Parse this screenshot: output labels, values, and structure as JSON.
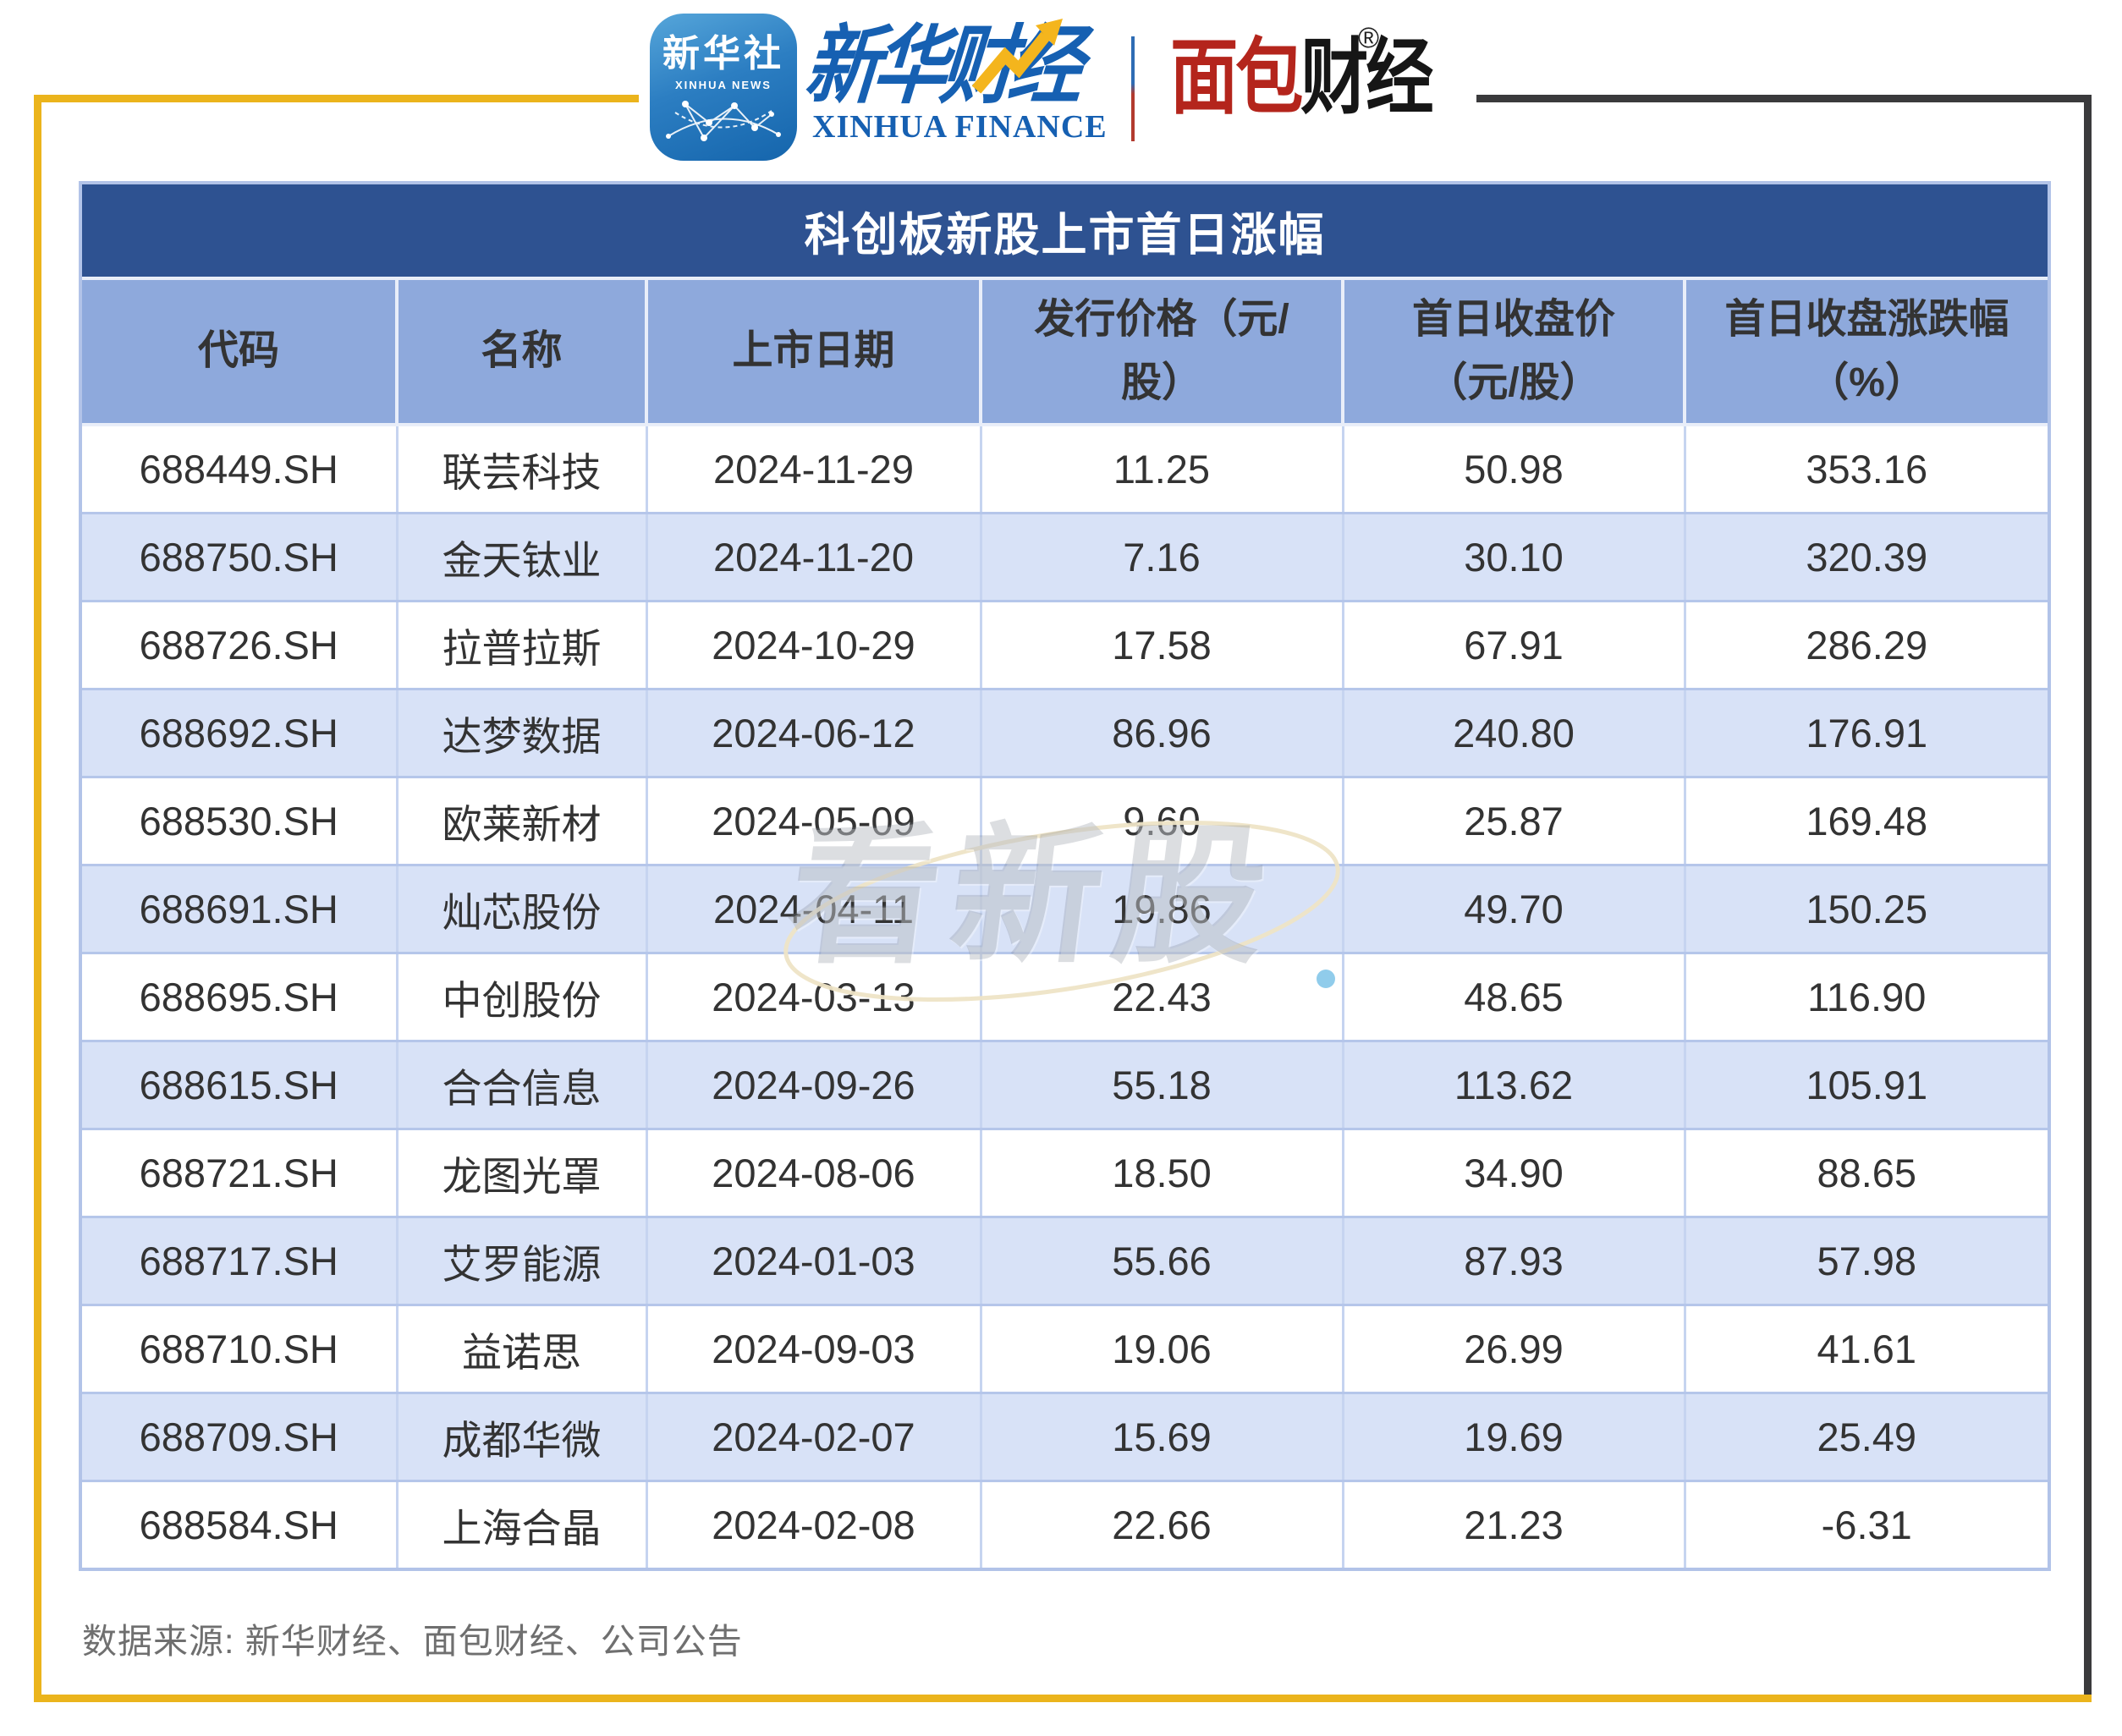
{
  "brand": {
    "xinhua_icon": {
      "cn": "新华社",
      "en": "XINHUA NEWS"
    },
    "xinhua_finance_cn": "新华财经",
    "xinhua_finance_en": "XINHUA FINANCE",
    "bread_cn_red": "面包",
    "bread_cn_black": "财经",
    "registered_mark": "®"
  },
  "chart_data": {
    "type": "table",
    "title": "科创板新股上市首日涨幅",
    "columns": [
      "代码",
      "名称",
      "上市日期",
      "发行价格（元/\n股）",
      "首日收盘价\n（元/股）",
      "首日收盘涨跌幅\n（%）"
    ],
    "rows": [
      [
        "688449.SH",
        "联芸科技",
        "2024-11-29",
        "11.25",
        "50.98",
        "353.16"
      ],
      [
        "688750.SH",
        "金天钛业",
        "2024-11-20",
        "7.16",
        "30.10",
        "320.39"
      ],
      [
        "688726.SH",
        "拉普拉斯",
        "2024-10-29",
        "17.58",
        "67.91",
        "286.29"
      ],
      [
        "688692.SH",
        "达梦数据",
        "2024-06-12",
        "86.96",
        "240.80",
        "176.91"
      ],
      [
        "688530.SH",
        "欧莱新材",
        "2024-05-09",
        "9.60",
        "25.87",
        "169.48"
      ],
      [
        "688691.SH",
        "灿芯股份",
        "2024-04-11",
        "19.86",
        "49.70",
        "150.25"
      ],
      [
        "688695.SH",
        "中创股份",
        "2024-03-13",
        "22.43",
        "48.65",
        "116.90"
      ],
      [
        "688615.SH",
        "合合信息",
        "2024-09-26",
        "55.18",
        "113.62",
        "105.91"
      ],
      [
        "688721.SH",
        "龙图光罩",
        "2024-08-06",
        "18.50",
        "34.90",
        "88.65"
      ],
      [
        "688717.SH",
        "艾罗能源",
        "2024-01-03",
        "55.66",
        "87.93",
        "57.98"
      ],
      [
        "688710.SH",
        "益诺思",
        "2024-09-03",
        "19.06",
        "26.99",
        "41.61"
      ],
      [
        "688709.SH",
        "成都华微",
        "2024-02-07",
        "15.69",
        "19.69",
        "25.49"
      ],
      [
        "688584.SH",
        "上海合晶",
        "2024-02-08",
        "22.66",
        "21.23",
        "-6.31"
      ]
    ]
  },
  "watermark": "看新股",
  "footer": {
    "source": "数据来源: 新华财经、面包财经、公司公告"
  },
  "colors": {
    "accent_yellow": "#EBB41C",
    "frame_dark": "#3A3A3C",
    "title_bg": "#2E5291",
    "header_bg": "#8EA9DC",
    "row_alt_bg": "#D8E2F7",
    "brand_blue": "#1660B2",
    "brand_red": "#B4251C"
  }
}
